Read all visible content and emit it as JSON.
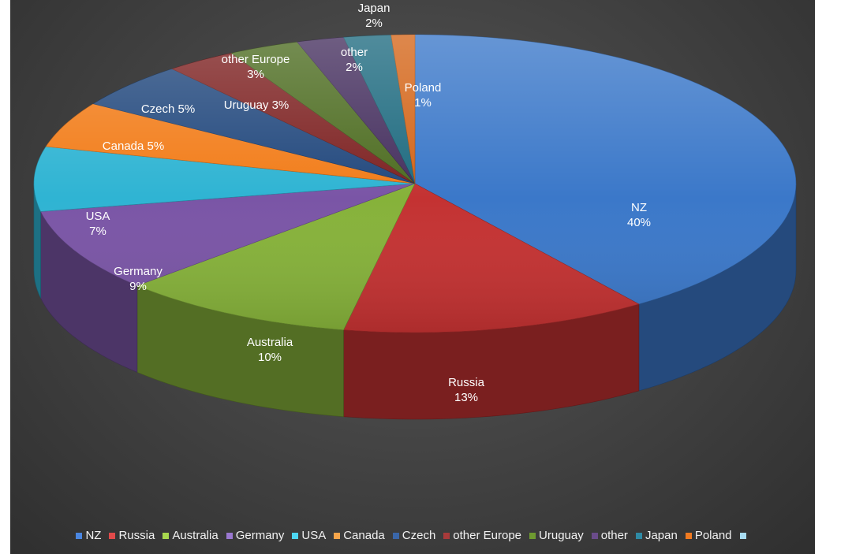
{
  "chart_data": {
    "type": "pie",
    "variant": "3d",
    "unit": "%",
    "slices": [
      {
        "label": "NZ",
        "value": 40,
        "percent_label": "40%",
        "color": "#3b78c9"
      },
      {
        "label": "Russia",
        "value": 13,
        "percent_label": "13%",
        "color": "#c43232"
      },
      {
        "label": "Australia",
        "value": 10,
        "percent_label": "10%",
        "color": "#86b23a"
      },
      {
        "label": "Germany",
        "value": 9,
        "percent_label": "9%",
        "color": "#7a55a6"
      },
      {
        "label": "USA",
        "value": 7,
        "percent_label": "7%",
        "color": "#2fb4d3"
      },
      {
        "label": "Canada",
        "value": 5,
        "percent_label": "5%",
        "color": "#f27d1a"
      },
      {
        "label": "Czech",
        "value": 5,
        "percent_label": "5%",
        "color": "#23497e"
      },
      {
        "label": "other Europe",
        "value": 3,
        "percent_label": "3%",
        "color": "#7e2323"
      },
      {
        "label": "Uruguay",
        "value": 3,
        "percent_label": "3%",
        "color": "#4e6d22"
      },
      {
        "label": "other",
        "value": 2,
        "percent_label": "2%",
        "color": "#46305f"
      },
      {
        "label": "Japan",
        "value": 2,
        "percent_label": "2%",
        "color": "#1f6b80"
      },
      {
        "label": "Poland",
        "value": 1,
        "percent_label": "1%",
        "color": "#d4661a"
      }
    ],
    "legend": {
      "position": "bottom",
      "items": [
        {
          "label": "NZ",
          "color": "#4a86e0"
        },
        {
          "label": "Russia",
          "color": "#e04a4a"
        },
        {
          "label": "Australia",
          "color": "#a8d84e"
        },
        {
          "label": "Germany",
          "color": "#9a78d0"
        },
        {
          "label": "USA",
          "color": "#4dd6f2"
        },
        {
          "label": "Canada",
          "color": "#f7a54a"
        },
        {
          "label": "Czech",
          "color": "#3a66a8"
        },
        {
          "label": "other Europe",
          "color": "#a83a3a"
        },
        {
          "label": "Uruguay",
          "color": "#6e9a30"
        },
        {
          "label": "other",
          "color": "#6a4c8a"
        },
        {
          "label": "Japan",
          "color": "#2f8aa4"
        },
        {
          "label": "Poland",
          "color": "#f07a20"
        },
        {
          "label": "",
          "color": "#a8dcf2"
        }
      ]
    }
  }
}
